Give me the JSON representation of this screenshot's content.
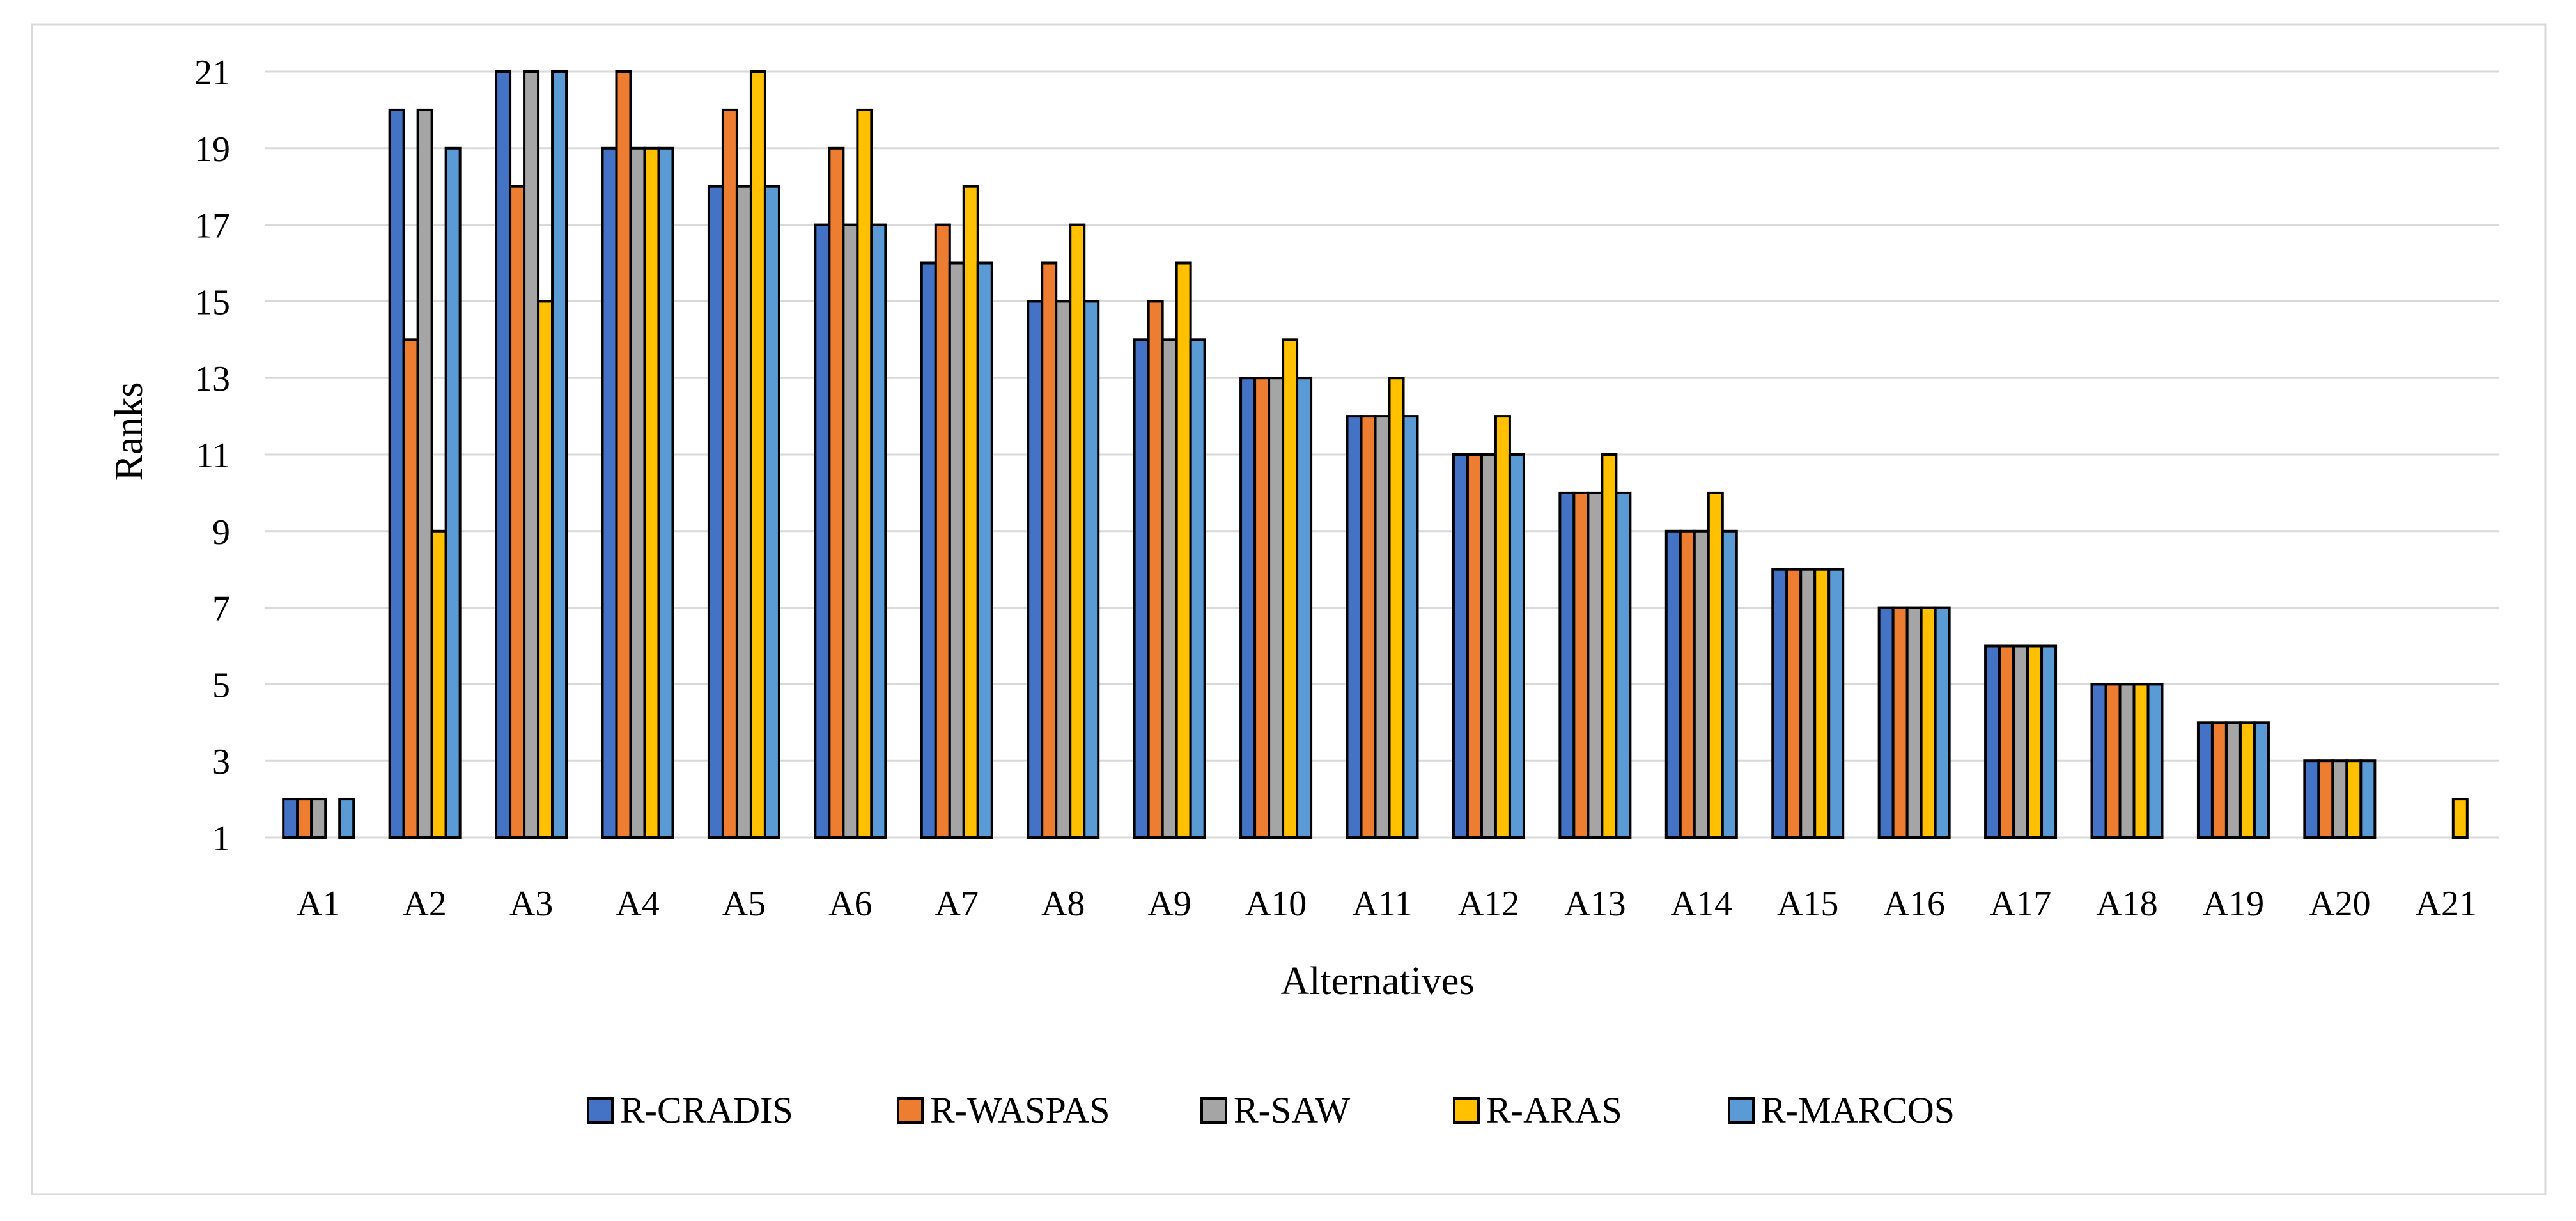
{
  "chart_data": {
    "type": "bar",
    "xlabel": "Alternatives",
    "ylabel": "Ranks",
    "ylim": [
      1,
      21
    ],
    "yticks": [
      1,
      3,
      5,
      7,
      9,
      11,
      13,
      15,
      17,
      19,
      21
    ],
    "grid": true,
    "legend_position": "bottom",
    "categories": [
      "A1",
      "A2",
      "A3",
      "A4",
      "A5",
      "A6",
      "A7",
      "A8",
      "A9",
      "A10",
      "A11",
      "A12",
      "A13",
      "A14",
      "A15",
      "A16",
      "A17",
      "A18",
      "A19",
      "A20",
      "A21"
    ],
    "series": [
      {
        "name": "R-CRADIS",
        "color": "#4472C4",
        "values": [
          2,
          20,
          21,
          19,
          18,
          17,
          16,
          15,
          14,
          13,
          12,
          11,
          10,
          9,
          8,
          7,
          6,
          5,
          4,
          3,
          null
        ]
      },
      {
        "name": "R-WASPAS",
        "color": "#ED7D31",
        "values": [
          2,
          14,
          18,
          21,
          20,
          19,
          17,
          16,
          15,
          13,
          12,
          11,
          10,
          9,
          8,
          7,
          6,
          5,
          4,
          3,
          null
        ]
      },
      {
        "name": "R-SAW",
        "color": "#A5A5A5",
        "values": [
          2,
          20,
          21,
          19,
          18,
          17,
          16,
          15,
          14,
          13,
          12,
          11,
          10,
          9,
          8,
          7,
          6,
          5,
          4,
          3,
          null
        ]
      },
      {
        "name": "R-ARAS",
        "color": "#FFC000",
        "values": [
          null,
          9,
          15,
          19,
          21,
          20,
          18,
          17,
          16,
          14,
          13,
          12,
          11,
          10,
          8,
          7,
          6,
          5,
          4,
          3,
          2
        ]
      },
      {
        "name": "R-MARCOS",
        "color": "#5B9BD5",
        "values": [
          2,
          19,
          21,
          19,
          18,
          17,
          16,
          15,
          14,
          13,
          12,
          11,
          10,
          9,
          8,
          7,
          6,
          5,
          4,
          3,
          null
        ]
      }
    ]
  }
}
